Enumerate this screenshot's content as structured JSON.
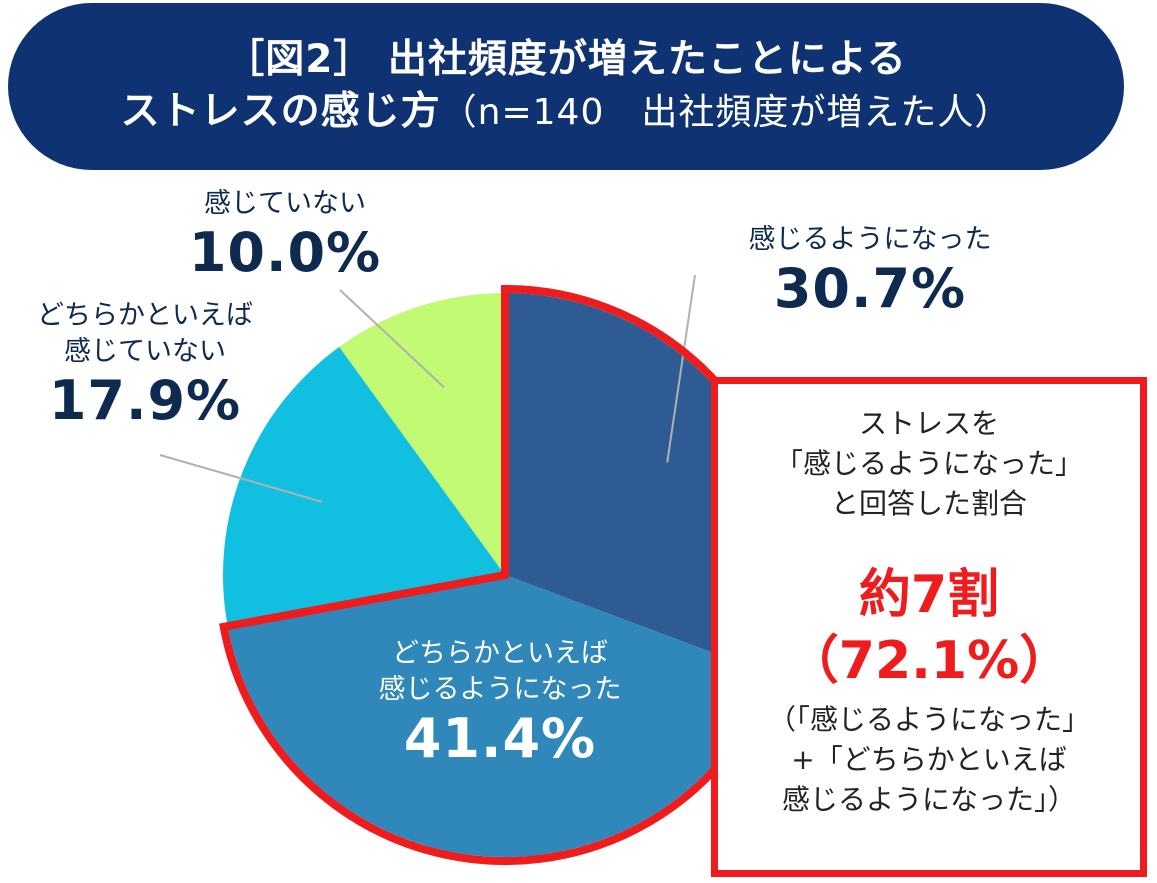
{
  "header": {
    "title_line1": "［図2］ 出社頻度が増えたことによる",
    "title_line2": "ストレスの感じ方",
    "title_sub": "（n=140　出社頻度が増えた人）",
    "bg_color": "#0e3272"
  },
  "chart_data": {
    "type": "pie",
    "slices": [
      {
        "label": "感じるようになった",
        "value": 30.7,
        "pct_text": "30.7%",
        "color": "#2e5b94"
      },
      {
        "label": "どちらかといえば\n感じるようになった",
        "label_line1": "どちらかといえば",
        "label_line2": "感じるようになった",
        "value": 41.4,
        "pct_text": "41.4%",
        "color": "#2f88b9"
      },
      {
        "label": "どちらかといえば\n感じていない",
        "label_line1": "どちらかといえば",
        "label_line2": "感じていない",
        "value": 17.9,
        "pct_text": "17.9%",
        "color": "#11c0e1"
      },
      {
        "label": "感じていない",
        "value": 10.0,
        "pct_text": "10.0%",
        "color": "#c2fa74"
      }
    ],
    "highlight_color": "#ee1c1c"
  },
  "callout": {
    "line1": "ストレスを",
    "line2": "「感じるようになった」",
    "line3": "と回答した割合",
    "big1": "約7割",
    "big2": "（72.1%）",
    "note1": "（「感じるようになった」",
    "note2": "+「どちらかといえば",
    "note3": "感じるようになった」）"
  }
}
